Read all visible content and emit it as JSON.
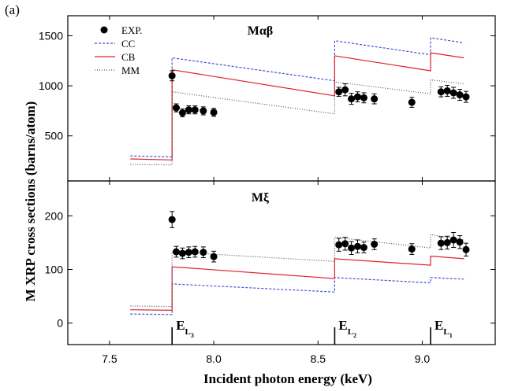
{
  "figure": {
    "panel_label": "(a)",
    "xlabel": "Incident photon energy (keV)",
    "ylabel": "M XRP cross sections (barns/atom)",
    "xticks": [
      "7.5",
      "8.0",
      "8.5",
      "9.0"
    ],
    "edge_labels": [
      {
        "main": "E",
        "sub": "L",
        "subsub": "3",
        "x": 7.8
      },
      {
        "main": "E",
        "sub": "L",
        "subsub": "2",
        "x": 8.58
      },
      {
        "main": "E",
        "sub": "L",
        "subsub": "1",
        "x": 9.04
      }
    ]
  },
  "legend": [
    {
      "label": "EXP.",
      "style": "marker",
      "color": "#000000"
    },
    {
      "label": "CC",
      "style": "dashed",
      "color": "#3b4fd8"
    },
    {
      "label": "CB",
      "style": "solid",
      "color": "#e0202a"
    },
    {
      "label": "MM",
      "style": "dotted",
      "color": "#555555"
    }
  ],
  "chart_data": [
    {
      "type": "line",
      "title": "Mαβ",
      "xlim": [
        7.3,
        9.35
      ],
      "ylim": [
        50,
        1700
      ],
      "yticks": [
        500,
        1000,
        1500
      ],
      "x_unit": "keV",
      "exp": {
        "x": [
          7.8,
          7.82,
          7.85,
          7.88,
          7.91,
          7.95,
          8.0,
          8.6,
          8.63,
          8.66,
          8.69,
          8.72,
          8.77,
          8.95,
          9.09,
          9.12,
          9.15,
          9.18,
          9.21
        ],
        "y": [
          1100,
          780,
          730,
          760,
          760,
          750,
          735,
          940,
          960,
          870,
          890,
          880,
          870,
          835,
          940,
          950,
          930,
          910,
          890
        ],
        "err": [
          50,
          40,
          40,
          40,
          40,
          40,
          40,
          45,
          60,
          55,
          50,
          50,
          50,
          50,
          50,
          55,
          55,
          55,
          55
        ]
      },
      "series": [
        {
          "name": "CC",
          "x": [
            7.6,
            7.8,
            7.8,
            8.58,
            8.58,
            9.04,
            9.04,
            9.2
          ],
          "y": [
            300,
            290,
            1280,
            1050,
            1450,
            1310,
            1480,
            1430
          ]
        },
        {
          "name": "CB",
          "x": [
            7.6,
            7.8,
            7.8,
            8.58,
            8.58,
            9.04,
            9.04,
            9.2
          ],
          "y": [
            270,
            260,
            1160,
            900,
            1300,
            1150,
            1330,
            1280
          ]
        },
        {
          "name": "MM",
          "x": [
            7.6,
            7.8,
            7.8,
            8.58,
            8.58,
            9.04,
            9.04,
            9.2
          ],
          "y": [
            215,
            210,
            940,
            720,
            1040,
            920,
            1060,
            1020
          ]
        }
      ]
    },
    {
      "type": "line",
      "title": "Mξ",
      "xlim": [
        7.3,
        9.35
      ],
      "ylim": [
        -40,
        265
      ],
      "yticks": [
        0,
        100,
        200
      ],
      "x_unit": "keV",
      "exp": {
        "x": [
          7.8,
          7.82,
          7.85,
          7.88,
          7.91,
          7.95,
          8.0,
          8.6,
          8.63,
          8.66,
          8.69,
          8.72,
          8.77,
          8.95,
          9.09,
          9.12,
          9.15,
          9.18,
          9.21
        ],
        "y": [
          193,
          133,
          130,
          132,
          133,
          132,
          124,
          146,
          148,
          140,
          143,
          141,
          147,
          138,
          149,
          150,
          155,
          151,
          137
        ],
        "err": [
          15,
          10,
          10,
          10,
          10,
          10,
          10,
          12,
          12,
          12,
          12,
          10,
          10,
          10,
          12,
          12,
          14,
          12,
          12
        ]
      },
      "series": [
        {
          "name": "CC",
          "x": [
            7.6,
            7.8,
            7.8,
            8.58,
            8.58,
            9.04,
            9.04,
            9.2
          ],
          "y": [
            17,
            16,
            73,
            58,
            85,
            75,
            85,
            82
          ]
        },
        {
          "name": "CB",
          "x": [
            7.6,
            7.8,
            7.8,
            8.58,
            8.58,
            9.04,
            9.04,
            9.2
          ],
          "y": [
            25,
            24,
            105,
            83,
            120,
            108,
            125,
            120
          ]
        },
        {
          "name": "MM",
          "x": [
            7.6,
            7.8,
            7.8,
            8.58,
            8.58,
            9.04,
            9.04,
            9.2
          ],
          "y": [
            32,
            31,
            133,
            115,
            160,
            140,
            165,
            155
          ]
        }
      ]
    }
  ]
}
